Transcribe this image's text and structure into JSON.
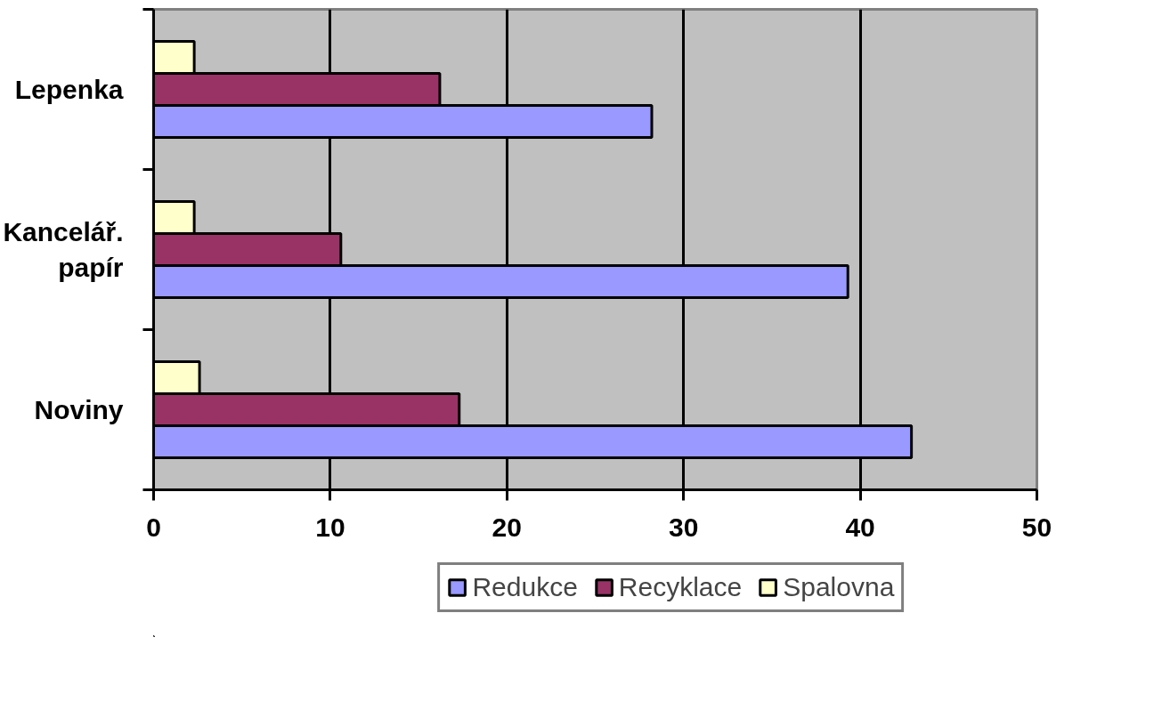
{
  "chart_data": {
    "type": "bar",
    "orientation": "horizontal",
    "categories": [
      "Lepenka",
      "Kancelář.\npapír",
      "Noviny"
    ],
    "series": [
      {
        "name": "Redukce",
        "color": "#9999ff",
        "values": [
          28.2,
          39.3,
          42.9
        ]
      },
      {
        "name": "Recyklace",
        "color": "#993366",
        "values": [
          16.2,
          10.6,
          17.3
        ]
      },
      {
        "name": "Spalovna",
        "color": "#ffffcc",
        "values": [
          2.3,
          2.3,
          2.6
        ]
      }
    ],
    "xlim": [
      0,
      50
    ],
    "xticks": [
      0,
      10,
      20,
      30,
      40,
      50
    ],
    "grid": "x",
    "legend": "bottom right"
  }
}
